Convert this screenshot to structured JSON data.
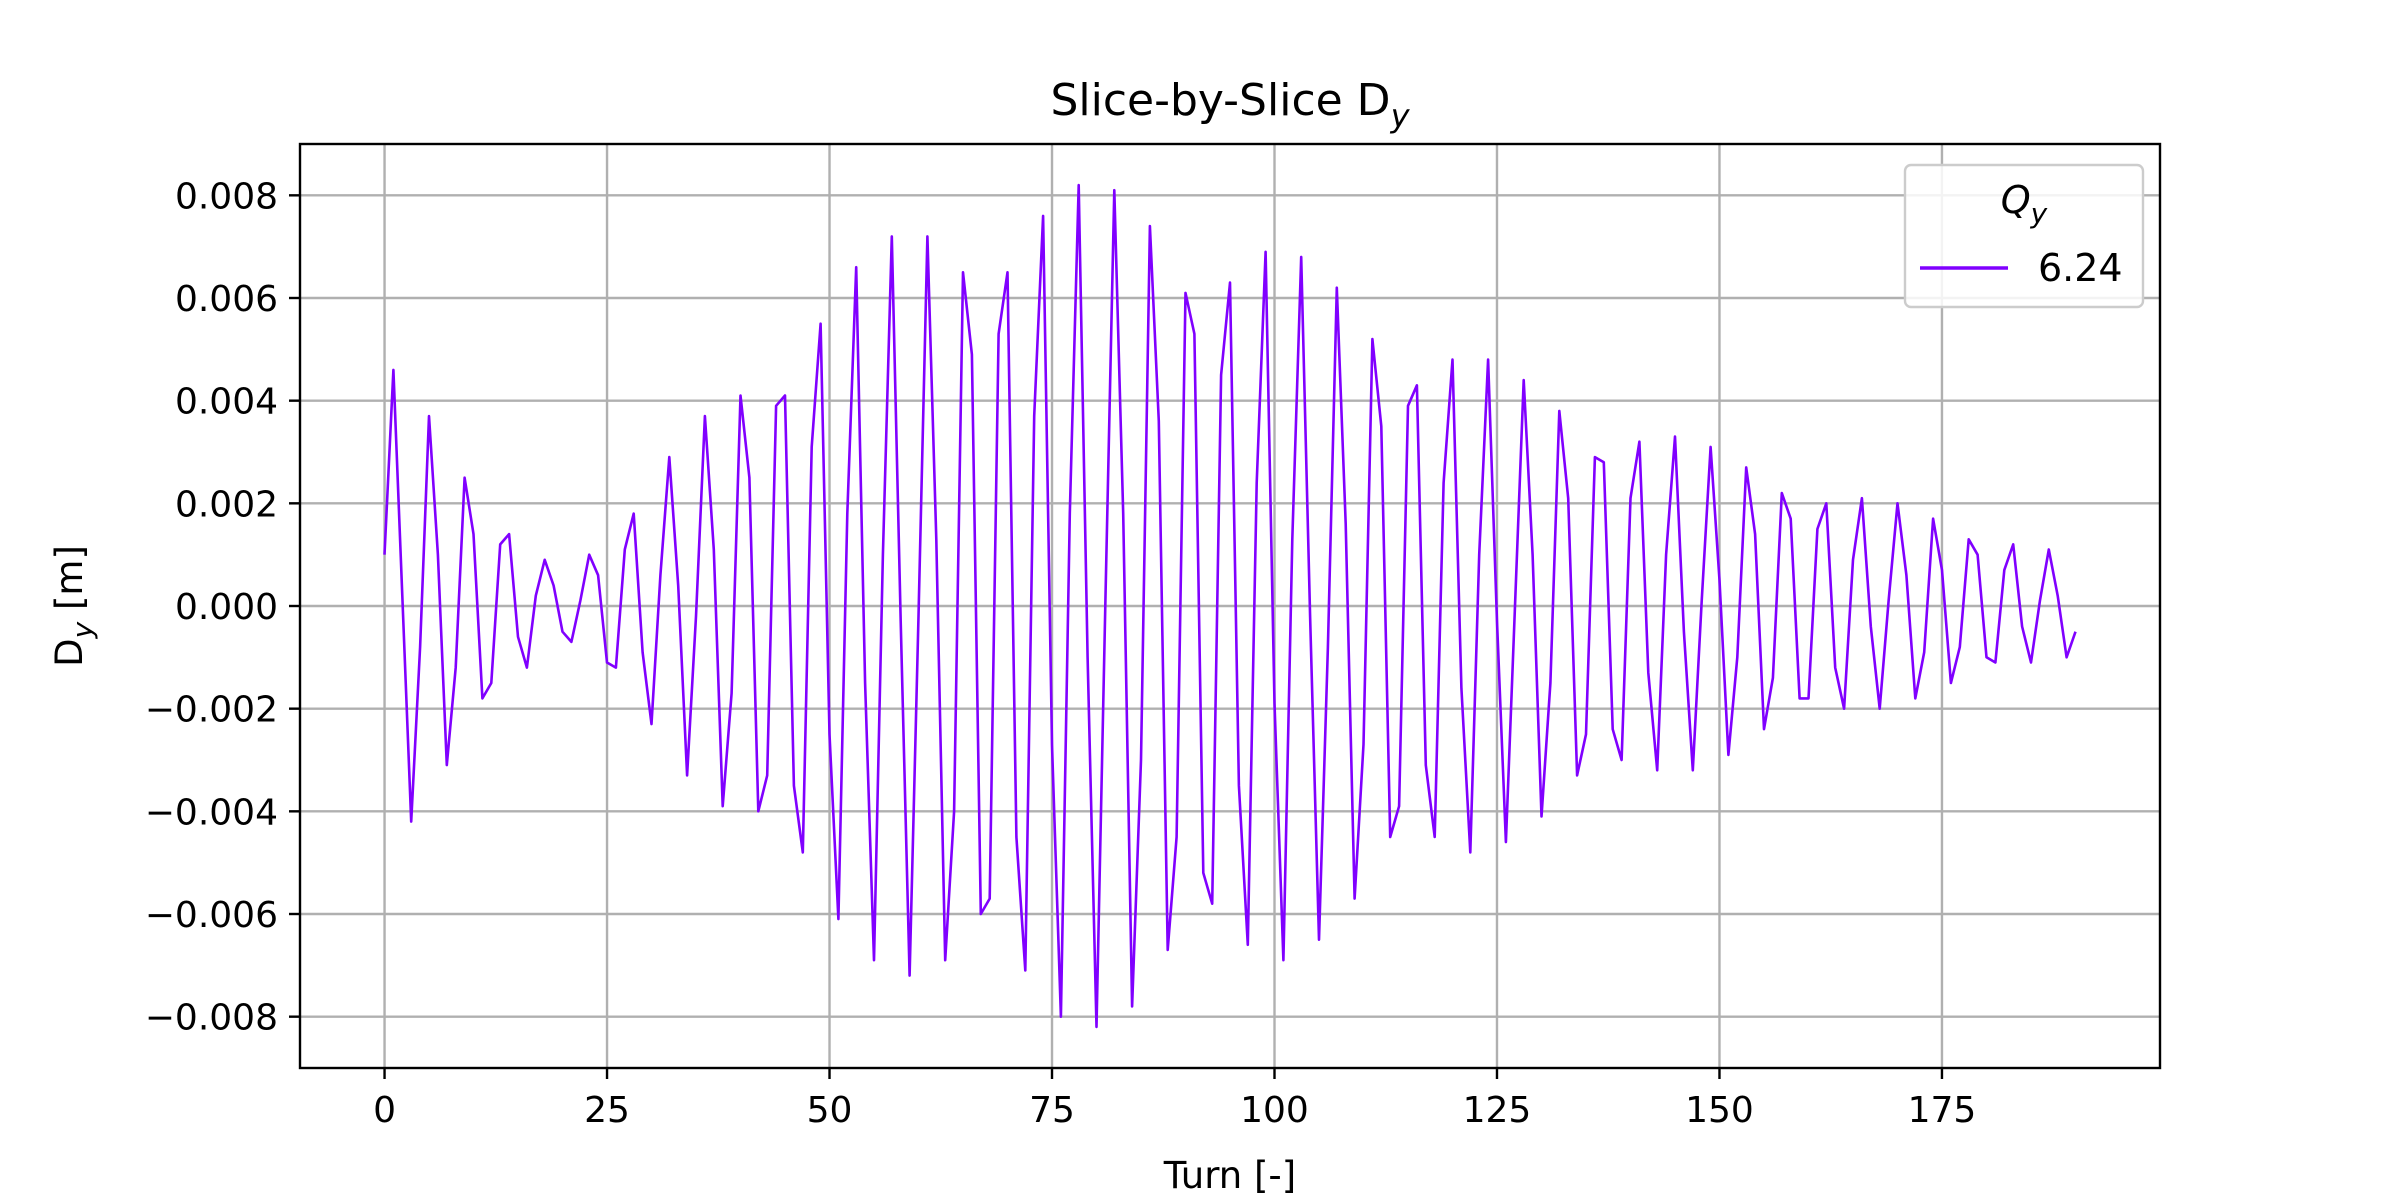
{
  "chart_data": {
    "type": "line",
    "title": "Slice-by-Slice D",
    "title_subscript": "y",
    "xlabel": "Turn [-]",
    "ylabel": "D",
    "ylabel_subscript": "y",
    "ylabel_unit": " [m]",
    "xlim": [
      -9.5,
      199.5
    ],
    "ylim": [
      -0.009,
      0.009
    ],
    "xticks": [
      0,
      25,
      50,
      75,
      100,
      125,
      150,
      175
    ],
    "xtick_labels": [
      "0",
      "25",
      "50",
      "75",
      "100",
      "125",
      "150",
      "175"
    ],
    "yticks": [
      0.008,
      0.006,
      0.004,
      0.002,
      0.0,
      -0.002,
      -0.004,
      -0.006,
      -0.008
    ],
    "ytick_labels": [
      "0.008",
      "0.006",
      "0.004",
      "0.002",
      "0.000",
      "−0.002",
      "−0.004",
      "−0.006",
      "−0.008"
    ],
    "grid": true,
    "legend": {
      "title": "Q",
      "title_subscript": "y",
      "placement": "top-right"
    },
    "series": [
      {
        "name": "6.24",
        "color": "#8000ff",
        "x": [
          0,
          1,
          2,
          3,
          4,
          5,
          6,
          7,
          8,
          9,
          10,
          11,
          12,
          13,
          14,
          15,
          16,
          17,
          18,
          19,
          20,
          21,
          22,
          23,
          24,
          25,
          26,
          27,
          28,
          29,
          30,
          31,
          32,
          33,
          34,
          35,
          36,
          37,
          38,
          39,
          40,
          41,
          42,
          43,
          44,
          45,
          46,
          47,
          48,
          49,
          50,
          51,
          52,
          53,
          54,
          55,
          56,
          57,
          58,
          59,
          60,
          61,
          62,
          63,
          64,
          65,
          66,
          67,
          68,
          69,
          70,
          71,
          72,
          73,
          74,
          75,
          76,
          77,
          78,
          79,
          80,
          81,
          82,
          83,
          84,
          85,
          86,
          87,
          88,
          89,
          90,
          91,
          92,
          93,
          94,
          95,
          96,
          97,
          98,
          99,
          100,
          101,
          102,
          103,
          104,
          105,
          106,
          107,
          108,
          109,
          110,
          111,
          112,
          113,
          114,
          115,
          116,
          117,
          118,
          119,
          120,
          121,
          122,
          123,
          124,
          125,
          126,
          127,
          128,
          129,
          130,
          131,
          132,
          133,
          134,
          135,
          136,
          137,
          138,
          139,
          140,
          141,
          142,
          143,
          144,
          145,
          146,
          147,
          148,
          149,
          150,
          151,
          152,
          153,
          154,
          155,
          156,
          157,
          158,
          159,
          160,
          161,
          162,
          163,
          164,
          165,
          166,
          167,
          168,
          169,
          170,
          171,
          172,
          173,
          174,
          175,
          176,
          177,
          178,
          179,
          180,
          181,
          182,
          183,
          184,
          185,
          186,
          187,
          188,
          189,
          190
        ],
        "y": [
          0.001,
          0.0046,
          0.0002,
          -0.0042,
          -0.0008,
          0.0037,
          0.001,
          -0.0031,
          -0.0012,
          0.0025,
          0.0014,
          -0.0018,
          -0.0015,
          0.0012,
          0.0014,
          -0.0006,
          -0.0012,
          0.0002,
          0.0009,
          0.0004,
          -0.0005,
          -0.0007,
          0.0001,
          0.001,
          0.0006,
          -0.0011,
          -0.0012,
          0.0011,
          0.0018,
          -0.0009,
          -0.0023,
          0.0006,
          0.0029,
          0.0004,
          -0.0033,
          -0.0002,
          0.0037,
          0.0011,
          -0.0039,
          -0.0017,
          0.0041,
          0.0025,
          -0.004,
          -0.0033,
          0.0039,
          0.0041,
          -0.0035,
          -0.0048,
          0.0031,
          0.0055,
          -0.0025,
          -0.0061,
          0.0018,
          0.0066,
          -0.0015,
          -0.0069,
          0.001,
          0.0072,
          -0.0003,
          -0.0072,
          -0.0002,
          0.0072,
          0.0013,
          -0.0069,
          -0.004,
          0.0065,
          0.0049,
          -0.006,
          -0.0057,
          0.0053,
          0.0065,
          -0.0045,
          -0.0071,
          0.0037,
          0.0076,
          -0.0027,
          -0.008,
          0.0018,
          0.0082,
          -0.001,
          -0.0082,
          0.0001,
          0.0081,
          0.0018,
          -0.0078,
          -0.003,
          0.0074,
          0.0036,
          -0.0067,
          -0.0045,
          0.0061,
          0.0053,
          -0.0052,
          -0.0058,
          0.0045,
          0.0063,
          -0.0035,
          -0.0066,
          0.0024,
          0.0069,
          -0.0019,
          -0.0069,
          0.0013,
          0.0068,
          -0.0002,
          -0.0065,
          -0.0008,
          0.0062,
          0.0016,
          -0.0057,
          -0.0027,
          0.0052,
          0.0035,
          -0.0045,
          -0.0039,
          0.0039,
          0.0043,
          -0.0031,
          -0.0045,
          0.0024,
          0.0048,
          -0.0016,
          -0.0048,
          0.001,
          0.0048,
          -0.0003,
          -0.0046,
          -0.0001,
          0.0044,
          0.001,
          -0.0041,
          -0.0015,
          0.0038,
          0.0021,
          -0.0033,
          -0.0025,
          0.0029,
          0.0028,
          -0.0024,
          -0.003,
          0.0021,
          0.0032,
          -0.0013,
          -0.0032,
          0.001,
          0.0033,
          -0.0005,
          -0.0032,
          0.0001,
          0.0031,
          0.0005,
          -0.0029,
          -0.001,
          0.0027,
          0.0014,
          -0.0024,
          -0.0014,
          0.0022,
          0.0017,
          -0.0018,
          -0.0018,
          0.0015,
          0.002,
          -0.0012,
          -0.002,
          0.0009,
          0.0021,
          -0.0004,
          -0.002,
          0.0001,
          0.002,
          0.0006,
          -0.0018,
          -0.0009,
          0.0017,
          0.0007,
          -0.0015,
          -0.0008,
          0.0013,
          0.001,
          -0.001,
          -0.0011,
          0.0007,
          0.0012,
          -0.0004,
          -0.0011,
          0.0001,
          0.0011,
          0.0002,
          -0.001,
          -0.0005
        ]
      }
    ]
  }
}
